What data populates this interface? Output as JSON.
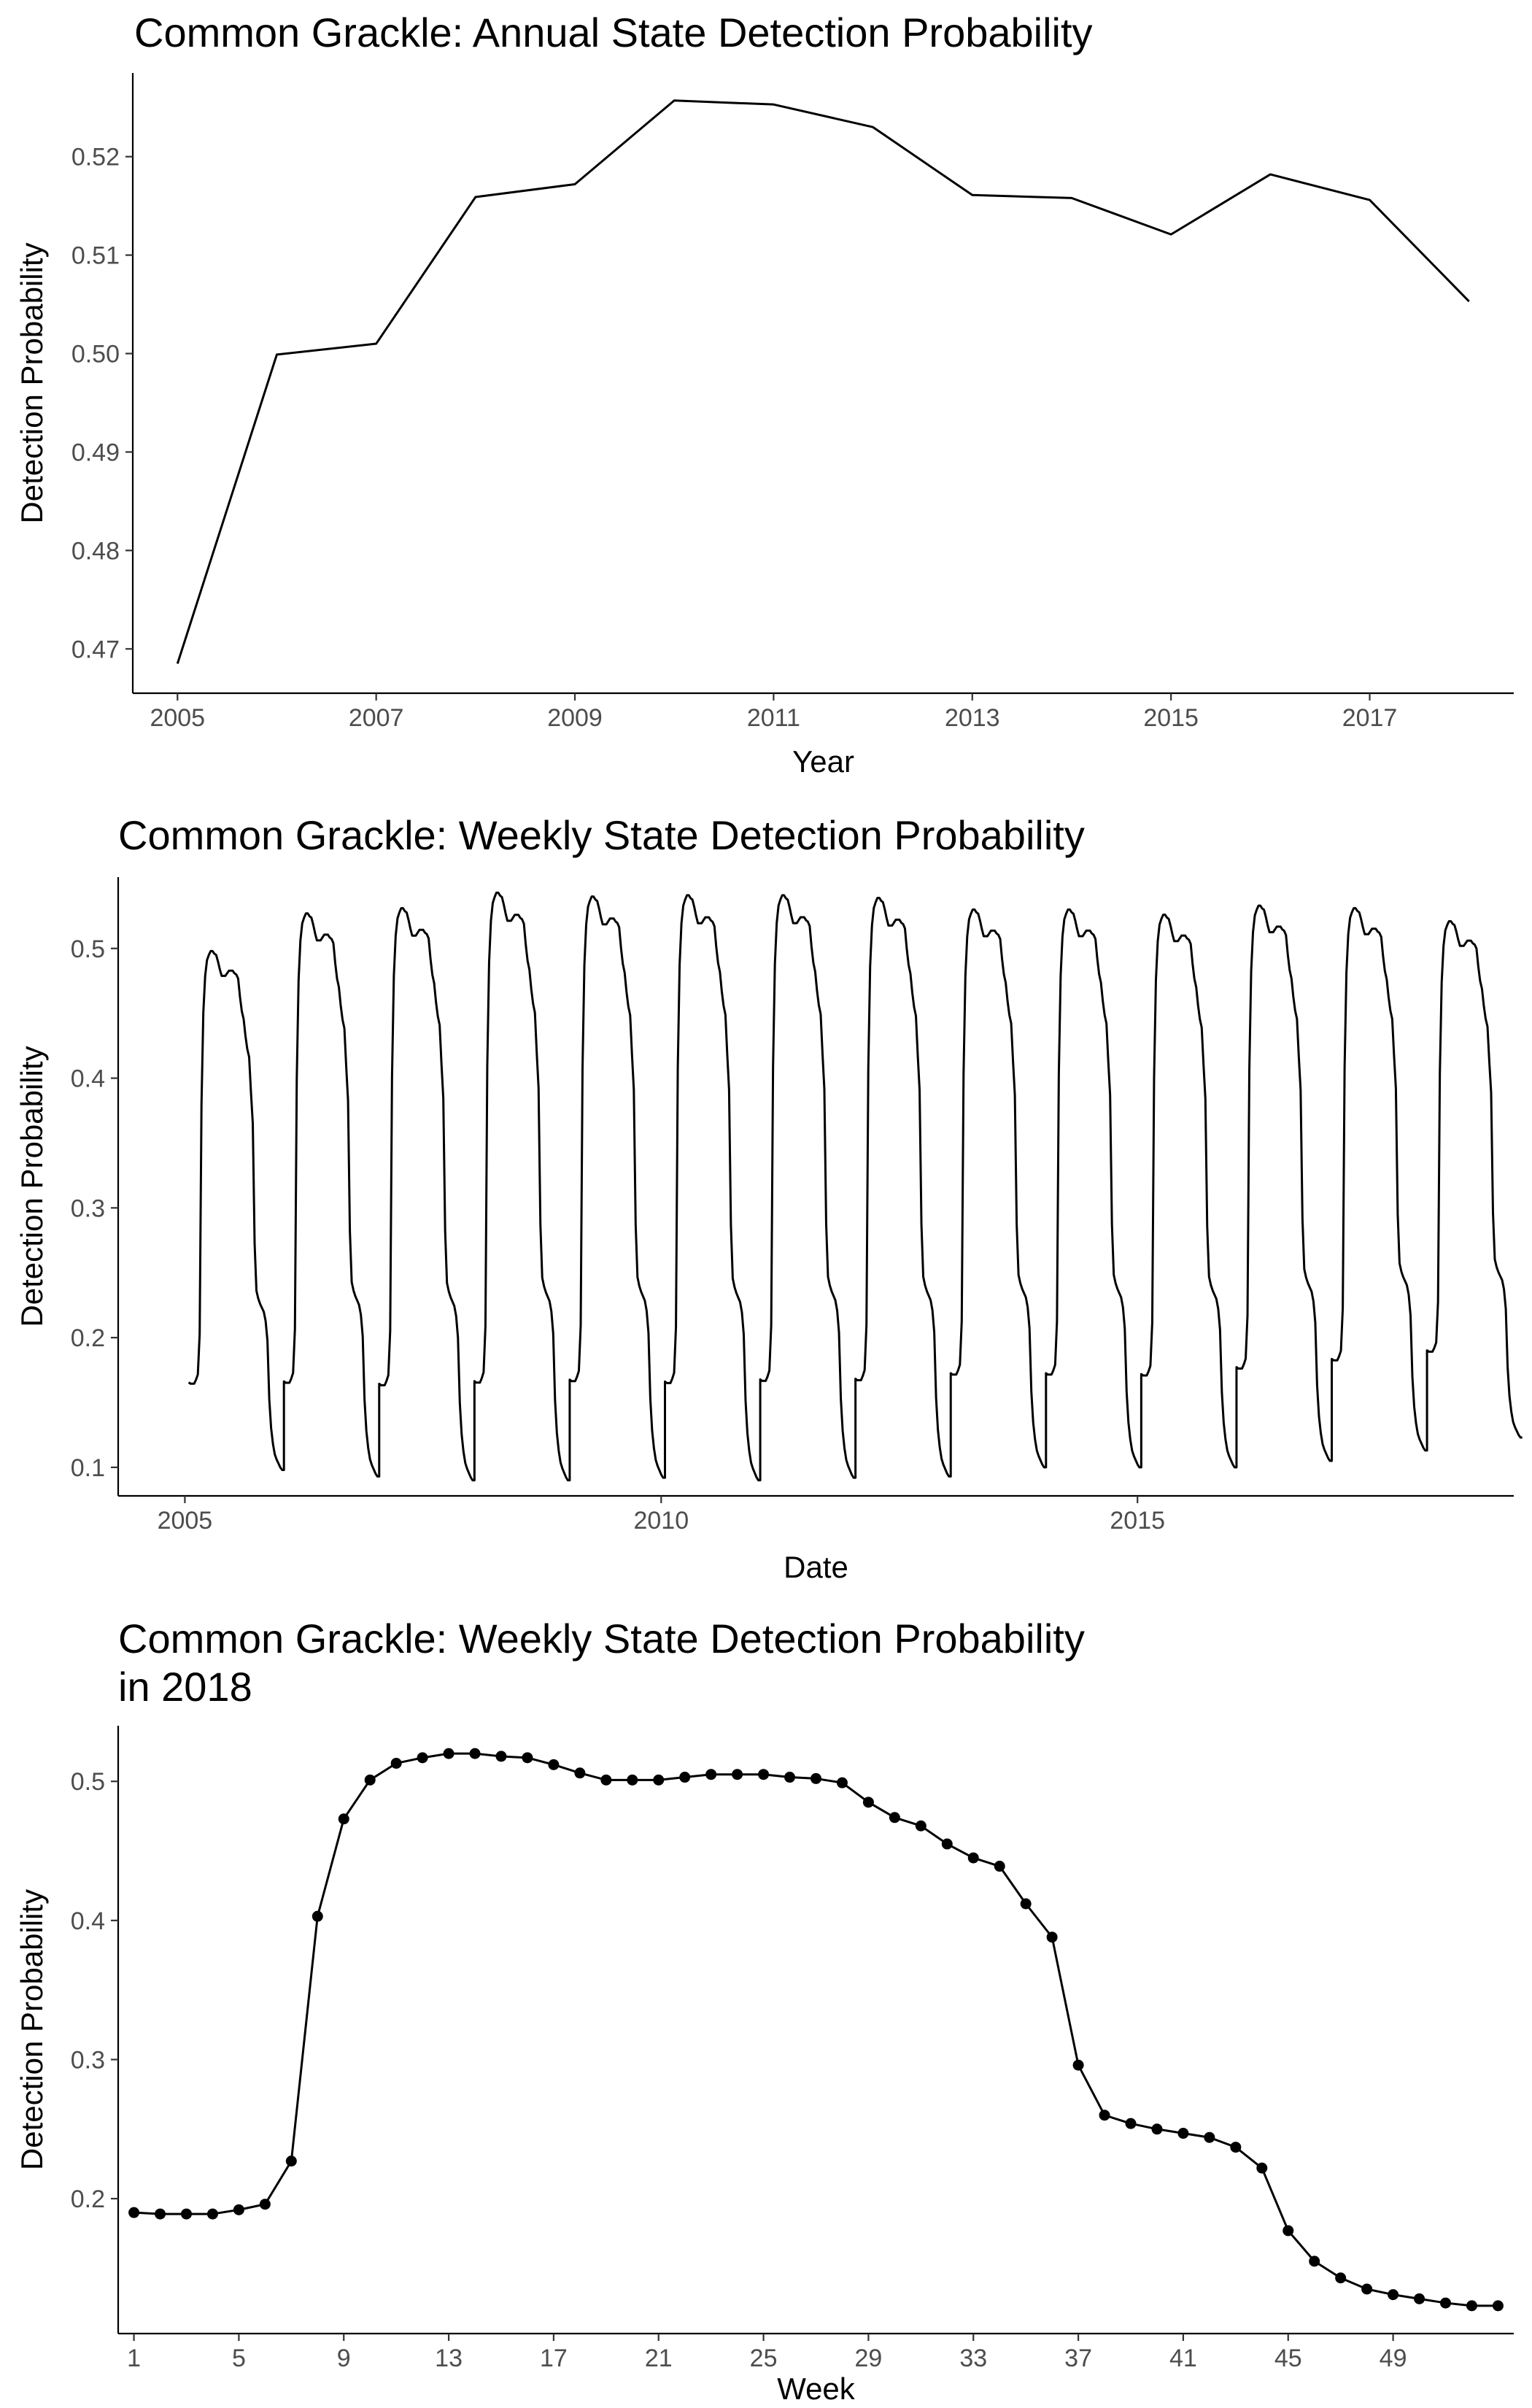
{
  "chart_data": [
    {
      "type": "line",
      "title": "Common Grackle: Annual State Detection Probability",
      "xlabel": "Year",
      "ylabel": "Detection Probability",
      "x": [
        2005,
        2006,
        2007,
        2008,
        2009,
        2010,
        2011,
        2012,
        2013,
        2014,
        2015,
        2016,
        2017,
        2018
      ],
      "values": [
        0.4685,
        0.4999,
        0.501,
        0.5159,
        0.5172,
        0.5257,
        0.5253,
        0.523,
        0.5161,
        0.5158,
        0.5121,
        0.5182,
        0.5156,
        0.5053
      ],
      "xlim": [
        2004.55,
        2018.45
      ],
      "ylim": [
        0.4655,
        0.5285
      ],
      "xticks": [
        2005,
        2007,
        2009,
        2011,
        2013,
        2015,
        2017
      ],
      "yticks": [
        0.47,
        0.48,
        0.49,
        0.5,
        0.51,
        0.52
      ],
      "ytick_labels": [
        "0.47",
        "0.48",
        "0.49",
        "0.50",
        "0.51",
        "0.52"
      ],
      "grid": false,
      "line_color": "#000000"
    },
    {
      "type": "line",
      "title": "Common Grackle: Weekly State Detection Probability",
      "xlabel": "Date",
      "ylabel": "Detection Probability",
      "x_start": 2005.04,
      "x_step_years": 0.01923,
      "annual_peaks": [
        0.498,
        0.527,
        0.531,
        0.543,
        0.54,
        0.541,
        0.541,
        0.539,
        0.53,
        0.53,
        0.526,
        0.533,
        0.531,
        0.521
      ],
      "annual_minimums": [
        0.098,
        0.093,
        0.09,
        0.09,
        0.092,
        0.09,
        0.092,
        0.093,
        0.1,
        0.1,
        0.1,
        0.105,
        0.113,
        0.123
      ],
      "weekly_shape_2018": [
        0.19,
        0.189,
        0.189,
        0.189,
        0.192,
        0.196,
        0.227,
        0.403,
        0.473,
        0.501,
        0.513,
        0.517,
        0.52,
        0.52,
        0.518,
        0.517,
        0.512,
        0.506,
        0.501,
        0.501,
        0.501,
        0.503,
        0.505,
        0.505,
        0.505,
        0.503,
        0.502,
        0.499,
        0.485,
        0.474,
        0.468,
        0.455,
        0.445,
        0.439,
        0.412,
        0.388,
        0.296,
        0.26,
        0.254,
        0.25,
        0.247,
        0.244,
        0.237,
        0.222,
        0.177,
        0.155,
        0.143,
        0.135,
        0.131,
        0.128,
        0.125,
        0.123,
        0.123
      ],
      "xlim": [
        2004.3,
        2018.95
      ],
      "ylim": [
        0.078,
        0.555
      ],
      "xticks": [
        2005,
        2010,
        2015
      ],
      "yticks": [
        0.1,
        0.2,
        0.3,
        0.4,
        0.5
      ],
      "ytick_labels": [
        "0.1",
        "0.2",
        "0.3",
        "0.4",
        "0.5"
      ],
      "grid": false,
      "line_color": "#000000"
    },
    {
      "type": "line",
      "title": "Common Grackle: Weekly State Detection Probability\nin 2018",
      "xlabel": "Week",
      "ylabel": "Detection Probability",
      "x": [
        1,
        2,
        3,
        4,
        5,
        6,
        7,
        8,
        9,
        10,
        11,
        12,
        13,
        14,
        15,
        16,
        17,
        18,
        19,
        20,
        21,
        22,
        23,
        24,
        25,
        26,
        27,
        28,
        29,
        30,
        31,
        32,
        33,
        34,
        35,
        36,
        37,
        38,
        39,
        40,
        41,
        42,
        43,
        44,
        45,
        46,
        47,
        48,
        49,
        50,
        51,
        52,
        53
      ],
      "values": [
        0.19,
        0.189,
        0.189,
        0.189,
        0.192,
        0.196,
        0.227,
        0.403,
        0.473,
        0.501,
        0.513,
        0.517,
        0.52,
        0.52,
        0.518,
        0.517,
        0.512,
        0.506,
        0.501,
        0.501,
        0.501,
        0.503,
        0.505,
        0.505,
        0.505,
        0.503,
        0.502,
        0.499,
        0.485,
        0.474,
        0.468,
        0.455,
        0.445,
        0.439,
        0.412,
        0.388,
        0.296,
        0.26,
        0.254,
        0.25,
        0.247,
        0.244,
        0.237,
        0.222,
        0.177,
        0.155,
        0.143,
        0.135,
        0.131,
        0.128,
        0.125,
        0.123,
        0.123
      ],
      "xlim": [
        0.4,
        53.6
      ],
      "ylim": [
        0.103,
        0.54
      ],
      "xticks": [
        1,
        5,
        9,
        13,
        17,
        21,
        25,
        29,
        33,
        37,
        41,
        45,
        49
      ],
      "yticks": [
        0.2,
        0.3,
        0.4,
        0.5
      ],
      "ytick_labels": [
        "0.2",
        "0.3",
        "0.4",
        "0.5"
      ],
      "markers": true,
      "grid": false,
      "line_color": "#000000"
    }
  ]
}
